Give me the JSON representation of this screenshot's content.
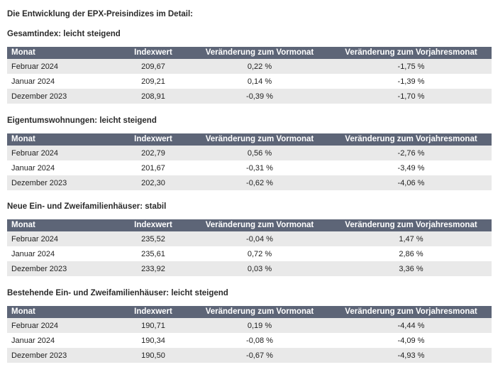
{
  "page_title": "Die Entwicklung der EPX-Preisindizes im Detail:",
  "columns": [
    "Monat",
    "Indexwert",
    "Veränderung zum Vormonat",
    "Veränderung zum Vorjahresmonat"
  ],
  "sections": [
    {
      "title": "Gesamtindex: leicht steigend",
      "rows": [
        {
          "month": "Februar 2024",
          "index": "209,67",
          "mom": "0,22 %",
          "yoy": "-1,75 %"
        },
        {
          "month": "Januar 2024",
          "index": "209,21",
          "mom": "0,14 %",
          "yoy": "-1,39 %"
        },
        {
          "month": "Dezember 2023",
          "index": "208,91",
          "mom": "-0,39 %",
          "yoy": "-1,70 %"
        }
      ]
    },
    {
      "title": "Eigentumswohnungen: leicht steigend",
      "rows": [
        {
          "month": "Februar 2024",
          "index": "202,79",
          "mom": "0,56 %",
          "yoy": "-2,76 %"
        },
        {
          "month": "Januar 2024",
          "index": "201,67",
          "mom": "-0,31 %",
          "yoy": "-3,49 %"
        },
        {
          "month": "Dezember 2023",
          "index": "202,30",
          "mom": "-0,62 %",
          "yoy": "-4,06 %"
        }
      ]
    },
    {
      "title": "Neue Ein- und Zweifamilienhäuser: stabil",
      "rows": [
        {
          "month": "Februar 2024",
          "index": "235,52",
          "mom": "-0,04 %",
          "yoy": "1,47 %"
        },
        {
          "month": "Januar 2024",
          "index": "235,61",
          "mom": "0,72 %",
          "yoy": "2,86 %"
        },
        {
          "month": "Dezember 2023",
          "index": "233,92",
          "mom": "0,03 %",
          "yoy": "3,36 %"
        }
      ]
    },
    {
      "title": "Bestehende Ein- und Zweifamilienhäuser: leicht steigend",
      "rows": [
        {
          "month": "Februar 2024",
          "index": "190,71",
          "mom": "0,19 %",
          "yoy": "-4,44 %"
        },
        {
          "month": "Januar 2024",
          "index": "190,34",
          "mom": "-0,08 %",
          "yoy": "-4,09 %"
        },
        {
          "month": "Dezember 2023",
          "index": "190,50",
          "mom": "-0,67 %",
          "yoy": "-4,93 %"
        }
      ]
    }
  ]
}
